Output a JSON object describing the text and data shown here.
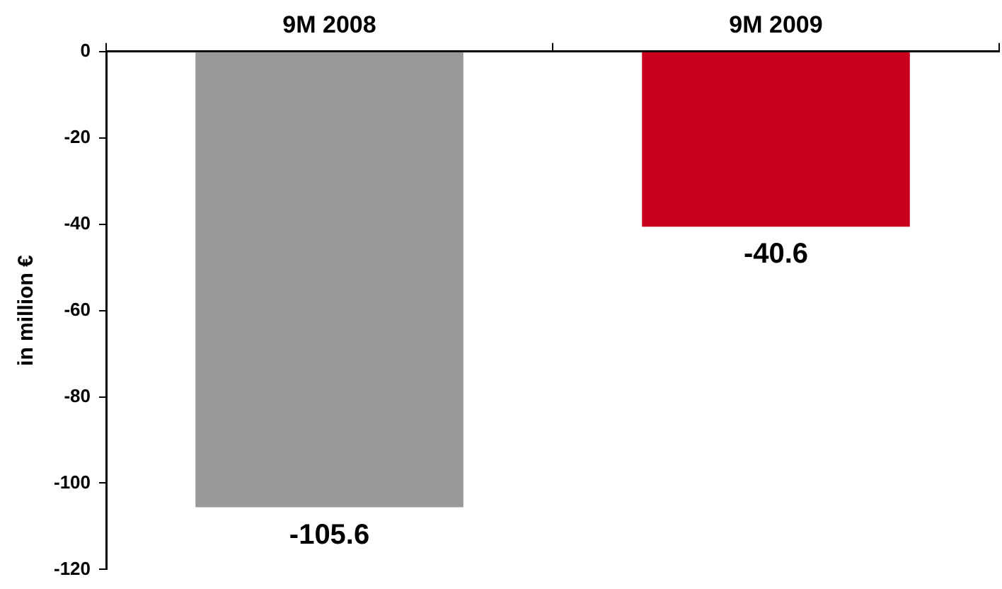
{
  "chart_data": {
    "type": "bar",
    "categories": [
      "9M 2008",
      "9M 2009"
    ],
    "values": [
      -105.6,
      -40.6
    ],
    "colors": [
      "#999999",
      "#c8001e"
    ],
    "ylabel": "in million €",
    "ylim": [
      -120,
      0
    ],
    "yticks": [
      -120,
      -100,
      -80,
      -60,
      -40,
      -20,
      0
    ],
    "grid": false,
    "legend": false,
    "data_labels": true
  }
}
